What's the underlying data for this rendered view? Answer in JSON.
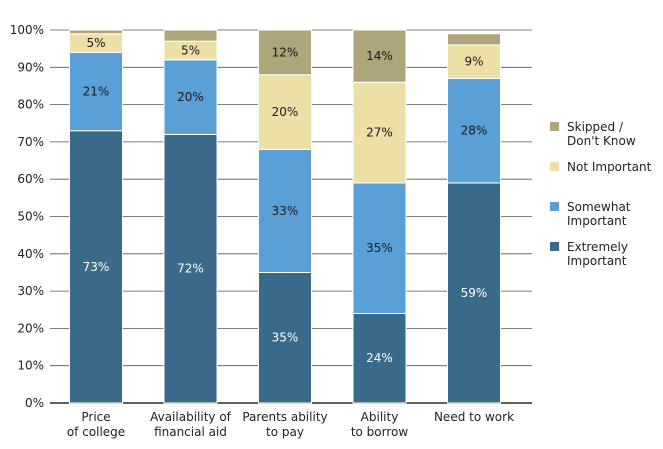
{
  "chart_data": {
    "type": "bar",
    "stacked": true,
    "title": "",
    "xlabel": "",
    "ylabel": "",
    "ylim": [
      0,
      100
    ],
    "y_ticks": [
      "0%",
      "10%",
      "20%",
      "30%",
      "40%",
      "50%",
      "60%",
      "70%",
      "80%",
      "90%",
      "100%"
    ],
    "grid": true,
    "legend_position": "right",
    "categories": [
      [
        "Price",
        "of college"
      ],
      [
        "Availability of",
        "financial aid"
      ],
      [
        "Parents ability",
        "to pay"
      ],
      [
        "Ability",
        "to borrow"
      ],
      [
        "Need to work"
      ]
    ],
    "series": [
      {
        "name": "Extremely Important",
        "legend_lines": [
          "Extremely",
          "Important"
        ],
        "color": "#3a6a8a",
        "label_color": "#ffffff",
        "values": [
          73,
          72,
          35,
          24,
          59
        ],
        "labels": [
          "73%",
          "72%",
          "35%",
          "24%",
          "59%"
        ]
      },
      {
        "name": "Somewhat Important",
        "legend_lines": [
          "Somewhat",
          "Important"
        ],
        "color": "#5aa0d6",
        "label_color": "#1a1a1a",
        "values": [
          21,
          20,
          33,
          35,
          28
        ],
        "labels": [
          "21%",
          "20%",
          "33%",
          "35%",
          "28%"
        ]
      },
      {
        "name": "Not Important",
        "legend_lines": [
          "Not Important"
        ],
        "color": "#ede0a6",
        "label_color": "#1a1a1a",
        "values": [
          5,
          5,
          20,
          27,
          9
        ],
        "labels": [
          "5%",
          "5%",
          "20%",
          "27%",
          "9%"
        ]
      },
      {
        "name": "Skipped / Don't Know",
        "legend_lines": [
          "Skipped /",
          "Don't Know"
        ],
        "color": "#aea57a",
        "label_color": "#1a1a1a",
        "values": [
          1,
          3,
          12,
          14,
          3
        ],
        "labels": [
          "",
          "",
          "12%",
          "14%",
          ""
        ]
      }
    ]
  }
}
